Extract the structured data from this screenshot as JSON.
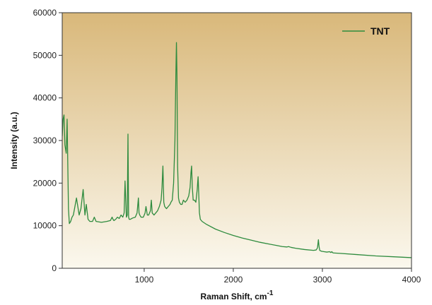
{
  "chart_data": {
    "type": "line",
    "title": "",
    "xlabel": "Raman Shift, cm",
    "xlabel_superscript": "-1",
    "ylabel": "Intensity (a.u.)",
    "xlim": [
      80,
      4000
    ],
    "ylim": [
      0,
      60000
    ],
    "x_ticks": [
      1000,
      2000,
      3000,
      4000
    ],
    "y_ticks": [
      0,
      10000,
      20000,
      30000,
      40000,
      50000,
      60000
    ],
    "grid": false,
    "legend_position": "top-right",
    "colors": {
      "line": "#2e8b3e",
      "background_top": "#d9b87a",
      "background_bottom": "#fbf8ee"
    },
    "series": [
      {
        "name": "TNT",
        "x": [
          80,
          90,
          100,
          110,
          125,
          135,
          150,
          160,
          175,
          190,
          205,
          240,
          270,
          290,
          315,
          335,
          350,
          370,
          390,
          420,
          440,
          460,
          520,
          580,
          620,
          640,
          650,
          660,
          680,
          700,
          720,
          740,
          760,
          775,
          785,
          800,
          810,
          818,
          825,
          832,
          845,
          870,
          900,
          920,
          935,
          942,
          950,
          965,
          990,
          1010,
          1020,
          1035,
          1050,
          1070,
          1080,
          1090,
          1110,
          1130,
          1150,
          1170,
          1190,
          1200,
          1210,
          1215,
          1220,
          1230,
          1250,
          1270,
          1290,
          1300,
          1315,
          1330,
          1345,
          1355,
          1362,
          1368,
          1375,
          1385,
          1395,
          1410,
          1425,
          1440,
          1460,
          1480,
          1500,
          1515,
          1525,
          1532,
          1540,
          1550,
          1565,
          1580,
          1595,
          1605,
          1613,
          1620,
          1630,
          1650,
          1700,
          1800,
          1900,
          2000,
          2100,
          2200,
          2300,
          2400,
          2500,
          2550,
          2600,
          2620,
          2650,
          2700,
          2800,
          2900,
          2930,
          2945,
          2955,
          2962,
          2970,
          2990,
          3020,
          3050,
          3080,
          3095,
          3105,
          3120,
          3200,
          3400,
          3600,
          3800,
          4000
        ],
        "y": [
          31000,
          35000,
          36000,
          29000,
          27000,
          35000,
          14000,
          10500,
          11000,
          12000,
          12500,
          16500,
          12500,
          14000,
          18500,
          12500,
          15000,
          11500,
          11000,
          11000,
          12000,
          11000,
          10800,
          11000,
          11200,
          12000,
          11500,
          11200,
          11500,
          12000,
          11700,
          12500,
          12000,
          13000,
          20500,
          12000,
          12500,
          31500,
          12000,
          11500,
          11500,
          11800,
          12000,
          13000,
          16500,
          13000,
          12500,
          12000,
          12000,
          13000,
          14500,
          12500,
          12500,
          13500,
          16000,
          13000,
          12500,
          13000,
          13500,
          14500,
          16000,
          19000,
          24000,
          20000,
          15500,
          14500,
          14000,
          14500,
          15000,
          15500,
          16000,
          20000,
          30000,
          45000,
          53000,
          45000,
          24000,
          16500,
          15500,
          15000,
          15000,
          16000,
          15500,
          16000,
          17000,
          19000,
          22500,
          24000,
          19000,
          16000,
          16000,
          15500,
          18500,
          21500,
          17000,
          13000,
          11500,
          11000,
          10300,
          9200,
          8400,
          7700,
          7100,
          6600,
          6100,
          5700,
          5300,
          5100,
          5000,
          5100,
          4900,
          4700,
          4400,
          4200,
          4300,
          4800,
          6700,
          5200,
          4200,
          4000,
          3900,
          3800,
          3900,
          3700,
          3900,
          3600,
          3500,
          3200,
          2900,
          2700,
          2500
        ]
      }
    ]
  }
}
